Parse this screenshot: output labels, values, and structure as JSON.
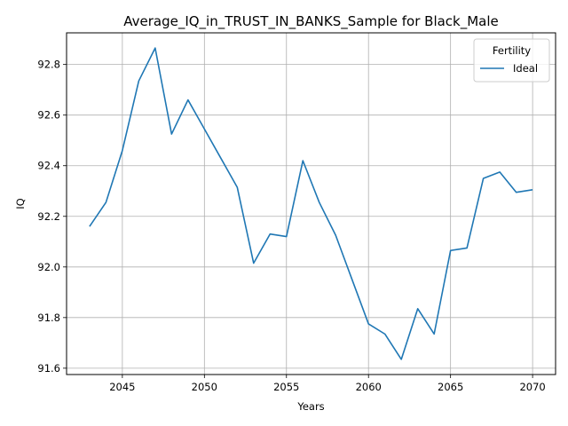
{
  "chart_data": {
    "type": "line",
    "title": "Average_IQ_in_TRUST_IN_BANKS_Sample for Black_Male",
    "xlabel": "Years",
    "ylabel": "IQ",
    "xlim": [
      2041.6,
      2071.4
    ],
    "ylim": [
      91.575,
      92.925
    ],
    "xticks": [
      2045,
      2050,
      2055,
      2060,
      2065,
      2070
    ],
    "yticks": [
      91.6,
      91.8,
      92.0,
      92.2,
      92.4,
      92.6,
      92.8
    ],
    "ytick_labels": [
      "91.6",
      "91.8",
      "92.0",
      "92.2",
      "92.4",
      "92.6",
      "92.8"
    ],
    "grid": true,
    "legend": {
      "title": "Fertility",
      "placement": "top-right"
    },
    "series": [
      {
        "name": "Ideal",
        "color": "#1f77b4",
        "x": [
          2043,
          2044,
          2045,
          2046,
          2047,
          2048,
          2049,
          2050,
          2051,
          2052,
          2053,
          2054,
          2055,
          2056,
          2057,
          2058,
          2059,
          2060,
          2061,
          2062,
          2063,
          2064,
          2065,
          2066,
          2067,
          2068,
          2069,
          2070
        ],
        "y": [
          92.16,
          92.255,
          92.46,
          92.735,
          92.865,
          92.525,
          92.66,
          92.545,
          92.43,
          92.315,
          92.015,
          92.13,
          92.12,
          92.42,
          92.255,
          92.125,
          91.95,
          91.775,
          91.735,
          91.635,
          91.835,
          91.735,
          92.065,
          92.075,
          92.35,
          92.375,
          92.295,
          92.305
        ]
      }
    ]
  }
}
